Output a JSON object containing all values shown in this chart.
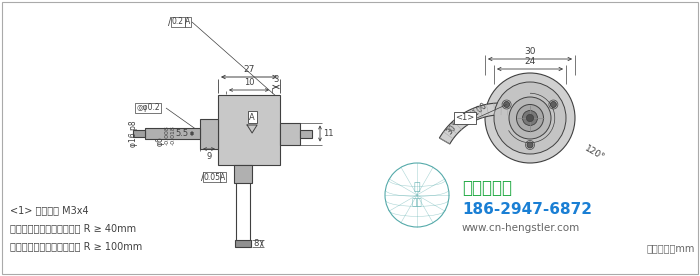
{
  "bg_color": "#ffffff",
  "line_color": "#404040",
  "dim_color": "#404040",
  "gray_body": "#c8c8c8",
  "gray_shaft": "#b0b0b0",
  "gray_connector": "#b8b8b8",
  "gray_cable": "#d0d0d0",
  "company_name": "西安德伍拓",
  "company_color": "#22aa44",
  "phone": "186-2947-6872",
  "phone_color": "#1a7fd4",
  "website": "www.cn-hengstler.com",
  "website_color": "#666666",
  "unit_note": "尺寸单位：mm",
  "note1": "<1> 安装螺纹 M3x4",
  "note2": "固定安装时，电缆弯曲半径 R ≥ 40mm",
  "note3": "弹性安装时，电缆弯曲半径 R ≥ 100mm",
  "fig_width": 7.0,
  "fig_height": 2.76
}
